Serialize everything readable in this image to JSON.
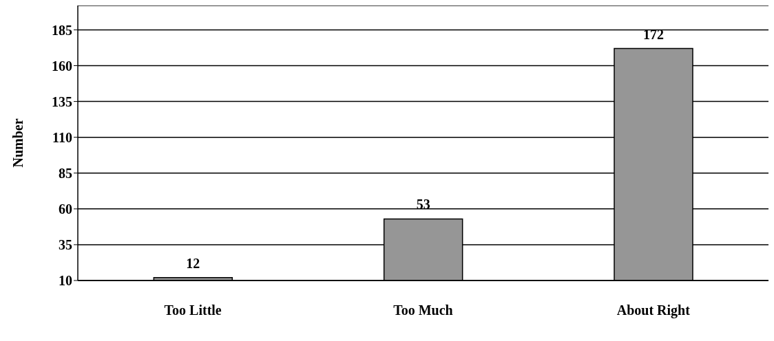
{
  "chart_data": {
    "type": "bar",
    "ylabel": "Number",
    "categories": [
      "Too Little",
      "Too Much",
      "About Right"
    ],
    "values": [
      12,
      53,
      172
    ],
    "color": "#969696",
    "ylim": [
      10,
      202
    ],
    "yticks": [
      10,
      35,
      60,
      85,
      110,
      135,
      160,
      185
    ],
    "grid": "y",
    "data_labels": true
  }
}
